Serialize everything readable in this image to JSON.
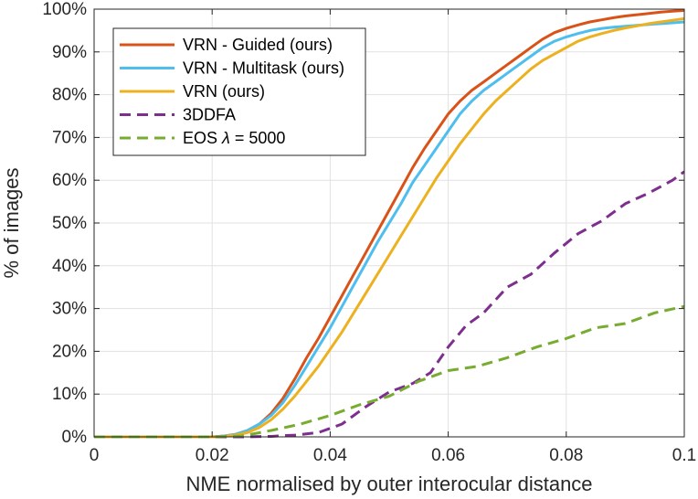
{
  "chart_data": {
    "type": "line",
    "title": "",
    "xlabel": "NME normalised by outer interocular distance",
    "ylabel": "% of images",
    "xlim": [
      0,
      0.1
    ],
    "ylim": [
      0,
      100
    ],
    "grid": true,
    "legend_position": "top-left",
    "x_ticks": [
      0,
      0.02,
      0.04,
      0.06,
      0.08,
      0.1
    ],
    "x_tick_labels": [
      "0",
      "0.02",
      "0.04",
      "0.06",
      "0.08",
      "0.1"
    ],
    "y_ticks": [
      0,
      10,
      20,
      30,
      40,
      50,
      60,
      70,
      80,
      90,
      100
    ],
    "y_tick_labels": [
      "0%",
      "10%",
      "20%",
      "30%",
      "40%",
      "50%",
      "60%",
      "70%",
      "80%",
      "90%",
      "100%"
    ],
    "series": [
      {
        "name": "VRN - Guided (ours)",
        "color": "#d95319",
        "dash": "solid",
        "x": [
          0,
          0.02,
          0.022,
          0.024,
          0.026,
          0.028,
          0.03,
          0.032,
          0.034,
          0.036,
          0.038,
          0.04,
          0.042,
          0.044,
          0.046,
          0.048,
          0.05,
          0.052,
          0.054,
          0.056,
          0.058,
          0.06,
          0.062,
          0.064,
          0.066,
          0.068,
          0.07,
          0.072,
          0.074,
          0.076,
          0.078,
          0.08,
          0.082,
          0.084,
          0.086,
          0.088,
          0.09,
          0.092,
          0.094,
          0.096,
          0.098,
          0.1
        ],
        "y": [
          0,
          0,
          0.2,
          0.6,
          1.5,
          3,
          5.5,
          9,
          13.5,
          18.5,
          23,
          28,
          33,
          38,
          43,
          48,
          53,
          58,
          63,
          67.5,
          71.5,
          75.5,
          78.5,
          81,
          83,
          85,
          87,
          89,
          91,
          93,
          94.5,
          95.5,
          96.3,
          97,
          97.5,
          98,
          98.4,
          98.7,
          99,
          99.3,
          99.5,
          99.7
        ]
      },
      {
        "name": "VRN - Multitask (ours)",
        "color": "#4dbeee",
        "dash": "solid",
        "x": [
          0,
          0.02,
          0.022,
          0.024,
          0.026,
          0.028,
          0.03,
          0.032,
          0.034,
          0.036,
          0.038,
          0.04,
          0.042,
          0.044,
          0.046,
          0.048,
          0.05,
          0.052,
          0.054,
          0.056,
          0.058,
          0.06,
          0.062,
          0.064,
          0.066,
          0.068,
          0.07,
          0.072,
          0.074,
          0.076,
          0.078,
          0.08,
          0.082,
          0.084,
          0.086,
          0.088,
          0.09,
          0.092,
          0.094,
          0.096,
          0.098,
          0.1
        ],
        "y": [
          0,
          0,
          0.2,
          0.6,
          1.5,
          3,
          5,
          8,
          12,
          16.5,
          21,
          25.5,
          30.5,
          35.5,
          40.5,
          45.5,
          50,
          54.5,
          59.5,
          63.5,
          67.5,
          71.5,
          75.5,
          78.5,
          81,
          83,
          85,
          87,
          89,
          91,
          92.5,
          93.5,
          94.3,
          95,
          95.5,
          95.8,
          96,
          96.2,
          96.4,
          96.6,
          96.8,
          97
        ]
      },
      {
        "name": "VRN (ours)",
        "color": "#edb120",
        "dash": "solid",
        "x": [
          0,
          0.02,
          0.022,
          0.024,
          0.026,
          0.028,
          0.03,
          0.032,
          0.034,
          0.036,
          0.038,
          0.04,
          0.042,
          0.044,
          0.046,
          0.048,
          0.05,
          0.052,
          0.054,
          0.056,
          0.058,
          0.06,
          0.062,
          0.064,
          0.066,
          0.068,
          0.07,
          0.072,
          0.074,
          0.076,
          0.078,
          0.08,
          0.082,
          0.084,
          0.086,
          0.088,
          0.09,
          0.092,
          0.094,
          0.096,
          0.098,
          0.1
        ],
        "y": [
          0,
          0,
          0.1,
          0.4,
          1,
          2.2,
          4,
          6.5,
          9.5,
          13,
          16.5,
          20.5,
          24.5,
          29,
          33.5,
          38,
          42.5,
          47,
          51.5,
          56,
          60.5,
          64.5,
          68.5,
          72,
          75.5,
          78.5,
          81,
          83.5,
          86,
          88,
          89.5,
          91,
          92.5,
          93.5,
          94.3,
          95,
          95.6,
          96.1,
          96.6,
          97,
          97.4,
          97.8
        ]
      },
      {
        "name": "3DDFA",
        "color": "#7e2f8e",
        "dash": "dashed",
        "x": [
          0,
          0.02,
          0.025,
          0.03,
          0.034,
          0.038,
          0.042,
          0.046,
          0.05,
          0.054,
          0.057,
          0.06,
          0.063,
          0.066,
          0.07,
          0.074,
          0.078,
          0.082,
          0.086,
          0.09,
          0.094,
          0.098,
          0.1
        ],
        "y": [
          0,
          0,
          0,
          0.1,
          0.4,
          1,
          3,
          7,
          10.5,
          12.5,
          15,
          21,
          26,
          29,
          35,
          38,
          43,
          47.5,
          50.5,
          54.5,
          57,
          60,
          62
        ]
      },
      {
        "name": "EOS λ = 5000",
        "color": "#77ac30",
        "dash": "dashed",
        "x": [
          0,
          0.02,
          0.025,
          0.03,
          0.035,
          0.04,
          0.045,
          0.05,
          0.055,
          0.06,
          0.065,
          0.07,
          0.075,
          0.08,
          0.085,
          0.09,
          0.095,
          0.1
        ],
        "y": [
          0,
          0,
          0.2,
          1.5,
          3,
          5,
          7.5,
          9.5,
          13,
          15.5,
          16.5,
          18.5,
          21,
          23,
          25.5,
          26.5,
          29,
          30.5
        ]
      }
    ]
  },
  "legend_entries": [
    {
      "before": "VRN - Guided (ours)",
      "symbol": "",
      "after": ""
    },
    {
      "before": "VRN - Multitask (ours)",
      "symbol": "",
      "after": ""
    },
    {
      "before": "VRN (ours)",
      "symbol": "",
      "after": ""
    },
    {
      "before": "3DDFA",
      "symbol": "",
      "after": ""
    },
    {
      "before": "EOS ",
      "symbol": "λ",
      "after": " = 5000"
    }
  ]
}
